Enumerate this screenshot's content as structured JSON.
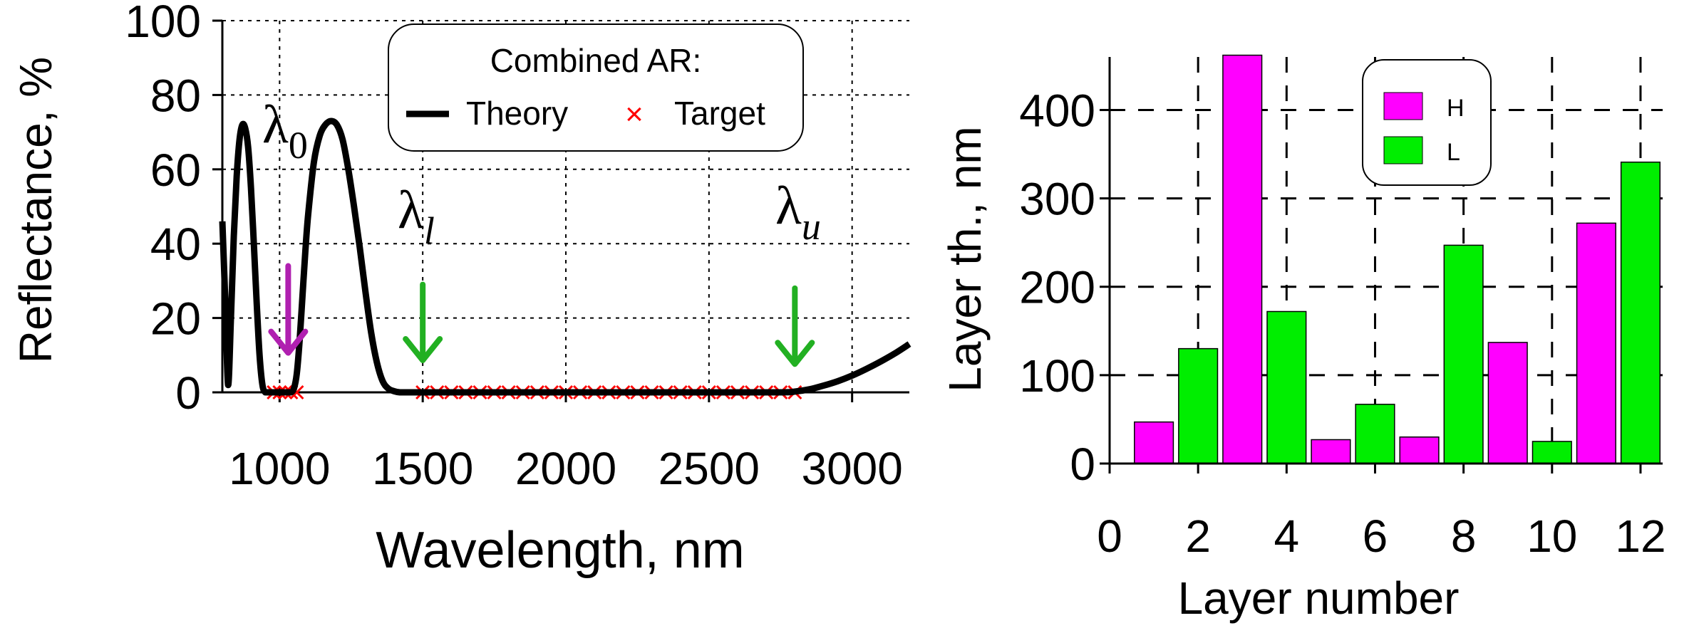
{
  "colors": {
    "theory": "#000000",
    "target": "#ff0000",
    "arrow_l0": "#b020b0",
    "arrow_lu": "#22b022",
    "H": "#ff00ff",
    "L": "#00ee00"
  },
  "chart_data": [
    {
      "type": "line",
      "xlabel": "Wavelength, nm",
      "ylabel": "Reflectance, %",
      "xlim": [
        800,
        3200
      ],
      "ylim": [
        0,
        100
      ],
      "xticks": [
        "1000",
        "1500",
        "2000",
        "2500",
        "3000"
      ],
      "yticks": [
        "0",
        "20",
        "40",
        "60",
        "80",
        "100"
      ],
      "grid": true,
      "legend": {
        "title": "Combined AR:",
        "position": "top-center",
        "entries": [
          "Theory",
          "Target"
        ]
      },
      "series": [
        {
          "name": "Theory",
          "x": [
            800,
            810,
            820,
            830,
            840,
            850,
            860,
            870,
            880,
            890,
            900,
            910,
            920,
            930,
            940,
            950,
            960,
            970,
            980,
            990,
            1000,
            1010,
            1020,
            1030,
            1040,
            1050,
            1060,
            1070,
            1080,
            1090,
            1100,
            1120,
            1140,
            1160,
            1180,
            1200,
            1220,
            1240,
            1260,
            1280,
            1300,
            1320,
            1340,
            1360,
            1380,
            1400,
            1420,
            1440,
            1460,
            1480,
            1500,
            2000,
            2500,
            2750,
            2800,
            2850,
            2900,
            2950,
            3000,
            3050,
            3100,
            3150,
            3200
          ],
          "y": [
            46,
            25,
            2,
            20,
            42,
            58,
            68,
            72,
            71,
            66,
            55,
            40,
            24,
            10,
            2,
            0,
            0,
            0,
            0,
            0,
            0,
            0,
            0,
            0,
            0,
            1,
            5,
            14,
            26,
            38,
            48,
            62,
            69,
            72,
            73,
            72,
            68,
            60,
            50,
            39,
            27,
            16,
            8,
            3,
            1,
            0.3,
            0,
            0,
            0,
            0,
            0,
            0,
            0,
            0,
            0.2,
            0.8,
            1.8,
            3,
            4.5,
            6.3,
            8.3,
            10.5,
            13
          ]
        },
        {
          "name": "Target",
          "x": [
            980,
            1000,
            1020,
            1040,
            1060,
            1500,
            1550,
            1600,
            1650,
            1700,
            1750,
            1800,
            1850,
            1900,
            1950,
            2000,
            2050,
            2100,
            2150,
            2200,
            2250,
            2300,
            2350,
            2400,
            2450,
            2500,
            2550,
            2600,
            2650,
            2700,
            2750,
            2800
          ],
          "y": [
            0,
            0,
            0,
            0,
            0,
            0,
            0,
            0,
            0,
            0,
            0,
            0,
            0,
            0,
            0,
            0,
            0,
            0,
            0,
            0,
            0,
            0,
            0,
            0,
            0,
            0,
            0,
            0,
            0,
            0,
            0,
            0
          ]
        }
      ],
      "annotations": [
        {
          "symbol": "λ",
          "subscript": "0",
          "x": 1030,
          "arrow_from": 34,
          "arrow_to": 11,
          "color": "arrow_l0"
        },
        {
          "symbol": "λ",
          "subscript": "l",
          "x": 1500,
          "arrow_from": 29,
          "arrow_to": 9,
          "color": "arrow_lu"
        },
        {
          "symbol": "λ",
          "subscript": "u",
          "x": 2800,
          "arrow_from": 28,
          "arrow_to": 8,
          "color": "arrow_lu"
        }
      ]
    },
    {
      "type": "bar",
      "xlabel": "Layer number",
      "ylabel": "Layer th., nm",
      "xlim": [
        0,
        12.5
      ],
      "ylim": [
        0,
        460
      ],
      "xticks": [
        "0",
        "2",
        "4",
        "6",
        "8",
        "10",
        "12"
      ],
      "yticks": [
        "0",
        "100",
        "200",
        "300",
        "400"
      ],
      "grid": true,
      "legend": {
        "position": "top-center",
        "entries": [
          "H",
          "L"
        ]
      },
      "categories": [
        1,
        2,
        3,
        4,
        5,
        6,
        7,
        8,
        9,
        10,
        11,
        12
      ],
      "values": [
        47,
        130,
        462,
        172,
        27,
        67,
        30,
        247,
        137,
        25,
        272,
        341
      ],
      "material": [
        "H",
        "L",
        "H",
        "L",
        "H",
        "L",
        "H",
        "L",
        "H",
        "L",
        "H",
        "L"
      ]
    }
  ]
}
